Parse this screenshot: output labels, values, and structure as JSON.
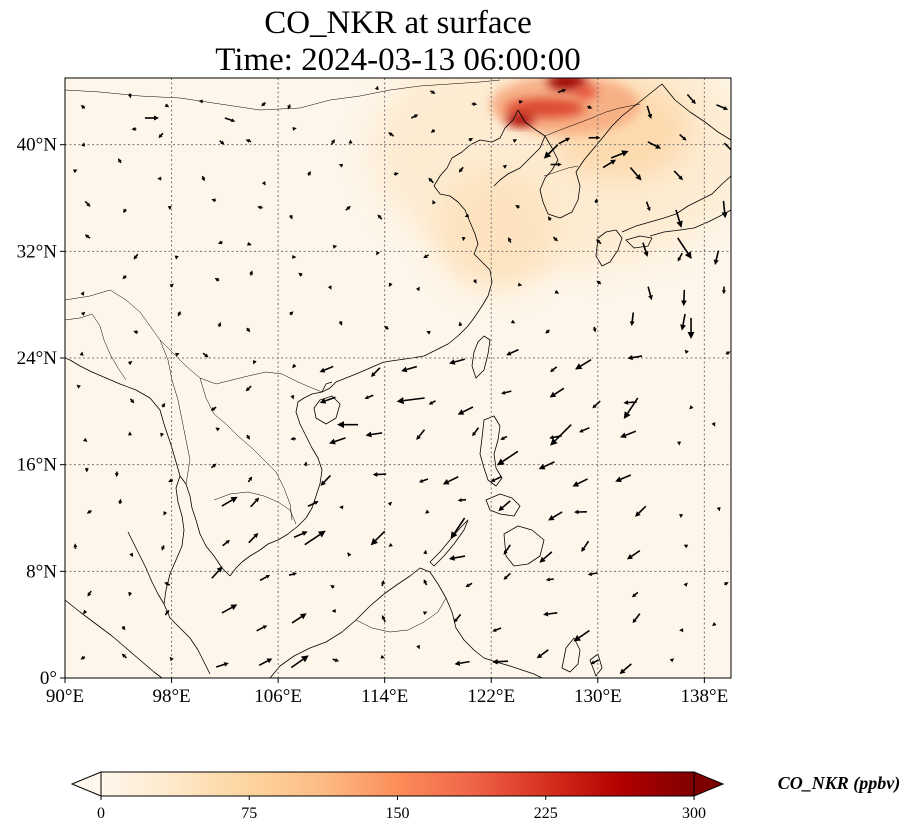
{
  "title": {
    "line1": "CO_NKR at surface",
    "line2": "Time: 2024-03-13 06:00:00"
  },
  "map": {
    "projection": "PlateCarree",
    "lon_range": [
      90,
      140
    ],
    "lat_range": [
      0,
      45
    ],
    "gridlines": "dotted",
    "lon_ticks": [
      {
        "value": 90,
        "label": "90°E"
      },
      {
        "value": 98,
        "label": "98°E"
      },
      {
        "value": 106,
        "label": "106°E"
      },
      {
        "value": 114,
        "label": "114°E"
      },
      {
        "value": 122,
        "label": "122°E"
      },
      {
        "value": 130,
        "label": "130°E"
      },
      {
        "value": 138,
        "label": "138°E"
      }
    ],
    "lat_ticks": [
      {
        "value": 0,
        "label": "0°"
      },
      {
        "value": 8,
        "label": "8°N"
      },
      {
        "value": 16,
        "label": "16°N"
      },
      {
        "value": 24,
        "label": "24°N"
      },
      {
        "value": 32,
        "label": "32°N"
      },
      {
        "value": 40,
        "label": "40°N"
      }
    ],
    "background_color": "#fef6ea",
    "hotspots": [
      {
        "lon": 127.5,
        "lat": 44.8,
        "value": 300
      },
      {
        "lon": 124.5,
        "lat": 42.5,
        "value": 280
      },
      {
        "lon": 126.5,
        "lat": 43.7,
        "value": 200
      },
      {
        "lon": 131,
        "lat": 41.5,
        "value": 90
      },
      {
        "lon": 122.5,
        "lat": 32.5,
        "value": 70
      },
      {
        "lon": 129,
        "lat": 37,
        "value": 55
      },
      {
        "lon": 132,
        "lat": 32,
        "value": 45
      }
    ]
  },
  "colorbar": {
    "label": "CO_NKR (ppbv)",
    "min": 0,
    "max": 300,
    "colormap": "OrRd",
    "extend": "both",
    "stops": [
      "#fff7ec",
      "#fee8c8",
      "#fdd49e",
      "#fdbb84",
      "#fc8d59",
      "#ef6548",
      "#d7301f",
      "#b30000",
      "#7f0000"
    ],
    "ticks": [
      {
        "value": 0,
        "label": "0"
      },
      {
        "value": 75,
        "label": "75"
      },
      {
        "value": 150,
        "label": "150"
      },
      {
        "value": 225,
        "label": "225"
      },
      {
        "value": 300,
        "label": "300"
      }
    ]
  },
  "wind_vectors": {
    "description_units": "m/s",
    "samples": [
      {
        "lon": 96,
        "lat": 42,
        "u": 2,
        "v": 0
      },
      {
        "lon": 102,
        "lat": 42,
        "u": 1.5,
        "v": -0.5
      },
      {
        "lon": 110,
        "lat": 40,
        "u": 0.5,
        "v": 0.8
      },
      {
        "lon": 116,
        "lat": 42,
        "u": 1,
        "v": 0.5
      },
      {
        "lon": 127,
        "lat": 40,
        "u": -2,
        "v": -2
      },
      {
        "lon": 131,
        "lat": 39,
        "u": 2.5,
        "v": 1
      },
      {
        "lon": 136,
        "lat": 33,
        "u": 2,
        "v": -3
      },
      {
        "lon": 137,
        "lat": 27,
        "u": 0,
        "v": -3
      },
      {
        "lon": 133,
        "lat": 21,
        "u": -2,
        "v": -3
      },
      {
        "lon": 128,
        "lat": 19,
        "u": -3,
        "v": -3
      },
      {
        "lon": 124,
        "lat": 17,
        "u": -3,
        "v": -2
      },
      {
        "lon": 117,
        "lat": 21,
        "u": -4,
        "v": -0.5
      },
      {
        "lon": 112,
        "lat": 19,
        "u": -3,
        "v": 0
      },
      {
        "lon": 108,
        "lat": 10,
        "u": 3,
        "v": 2
      },
      {
        "lon": 114,
        "lat": 11,
        "u": -2,
        "v": -2
      },
      {
        "lon": 120,
        "lat": 12,
        "u": -2,
        "v": -3
      }
    ]
  }
}
